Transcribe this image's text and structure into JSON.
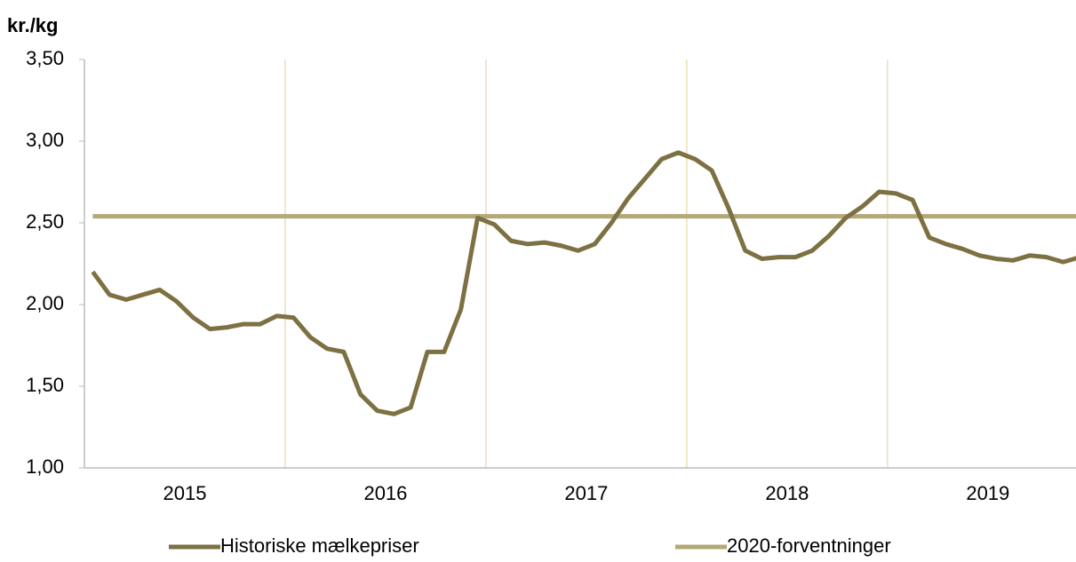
{
  "chart_data": {
    "type": "line",
    "y_axis_label": "kr./kg",
    "categories": [
      null,
      null,
      null,
      null,
      null,
      null,
      "2015",
      null,
      null,
      null,
      null,
      null,
      null,
      null,
      null,
      null,
      null,
      null,
      "2016",
      null,
      null,
      null,
      null,
      null,
      null,
      null,
      null,
      null,
      null,
      null,
      "2017",
      null,
      null,
      null,
      null,
      null,
      null,
      null,
      null,
      null,
      null,
      null,
      "2018",
      null,
      null,
      null,
      null,
      null,
      null,
      null,
      null,
      null,
      null,
      null,
      "2019",
      null,
      null,
      null,
      null,
      null
    ],
    "series": [
      {
        "name": "Historiske mælkepriser",
        "color": "#7d7042",
        "values": [
          2.2,
          2.06,
          2.03,
          2.06,
          2.09,
          2.02,
          1.92,
          1.85,
          1.86,
          1.88,
          1.88,
          1.93,
          1.92,
          1.8,
          1.73,
          1.71,
          1.45,
          1.35,
          1.33,
          1.37,
          1.71,
          1.71,
          1.97,
          2.53,
          2.49,
          2.39,
          2.37,
          2.38,
          2.36,
          2.33,
          2.37,
          2.5,
          2.65,
          2.77,
          2.89,
          2.93,
          2.89,
          2.82,
          2.59,
          2.33,
          2.28,
          2.29,
          2.29,
          2.33,
          2.42,
          2.53,
          2.6,
          2.69,
          2.68,
          2.64,
          2.41,
          2.37,
          2.34,
          2.3,
          2.28,
          2.27,
          2.3,
          2.29,
          2.26,
          2.29
        ]
      },
      {
        "name": "2020-forventninger",
        "color": "#b3a876",
        "values": [
          2.54,
          2.54,
          2.54,
          2.54,
          2.54,
          2.54,
          2.54,
          2.54,
          2.54,
          2.54,
          2.54,
          2.54,
          2.54,
          2.54,
          2.54,
          2.54,
          2.54,
          2.54,
          2.54,
          2.54,
          2.54,
          2.54,
          2.54,
          2.54,
          2.54,
          2.54,
          2.54,
          2.54,
          2.54,
          2.54,
          2.54,
          2.54,
          2.54,
          2.54,
          2.54,
          2.54,
          2.54,
          2.54,
          2.54,
          2.54,
          2.54,
          2.54,
          2.54,
          2.54,
          2.54,
          2.54,
          2.54,
          2.54,
          2.54,
          2.54,
          2.54,
          2.54,
          2.54,
          2.54,
          2.54,
          2.54,
          2.54,
          2.54,
          2.54,
          2.54
        ]
      }
    ],
    "ylim": [
      1.0,
      3.5
    ],
    "yticks": [
      {
        "value": 1.0,
        "label": "1,00"
      },
      {
        "value": 1.5,
        "label": "1,50"
      },
      {
        "value": 2.0,
        "label": "2,00"
      },
      {
        "value": 2.5,
        "label": "2,50"
      },
      {
        "value": 3.0,
        "label": "3,00"
      },
      {
        "value": 3.5,
        "label": "3,50"
      }
    ],
    "legend": "bottom"
  }
}
